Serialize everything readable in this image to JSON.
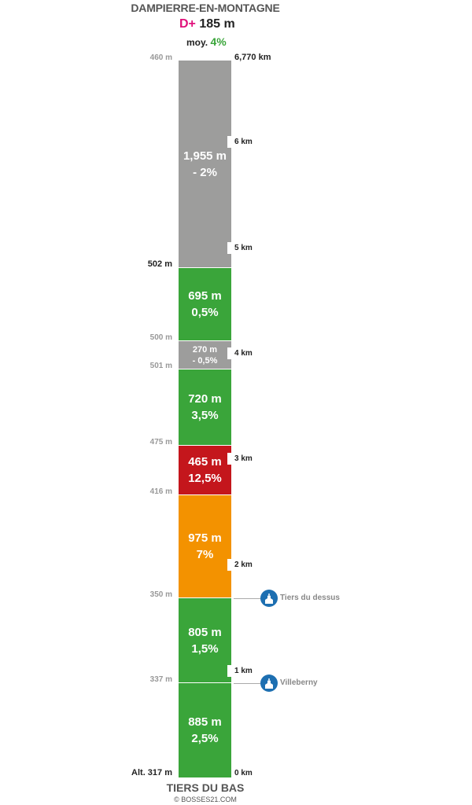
{
  "header": {
    "start_name": "DAMPIERRE-EN-MONTAGNE",
    "dplus_label": "D+",
    "dplus_value": "185 m",
    "avg_label": "moy.",
    "avg_value": "4%"
  },
  "footer": {
    "end_name": "TIERS DU BAS",
    "copyright": "© BOSSES21.COM"
  },
  "total_distance": "6,770 km",
  "segments": [
    {
      "length": "885 m",
      "grade": "2,5%",
      "color": "#3aa53a"
    },
    {
      "length": "805 m",
      "grade": "1,5%",
      "color": "#3aa53a"
    },
    {
      "length": "975 m",
      "grade": "7%",
      "color": "#f39200"
    },
    {
      "length": "465 m",
      "grade": "12,5%",
      "color": "#c4161c"
    },
    {
      "length": "720 m",
      "grade": "3,5%",
      "color": "#3aa53a"
    },
    {
      "length": "270 m",
      "grade": "- 0,5%",
      "color": "#9d9d9c"
    },
    {
      "length": "695 m",
      "grade": "0,5%",
      "color": "#3aa53a"
    },
    {
      "length": "1,955 m",
      "grade": "- 2%",
      "color": "#9d9d9c"
    }
  ],
  "altitudes": [
    "Alt. 317 m",
    "337 m",
    "350 m",
    "416 m",
    "475 m",
    "501 m",
    "500 m",
    "502 m",
    "460 m"
  ],
  "km_markers": [
    "0 km",
    "1 km",
    "2 km",
    "3 km",
    "4 km",
    "5 km",
    "6 km"
  ],
  "poi": [
    {
      "name": "Villeberny",
      "icon": "church-icon"
    },
    {
      "name": "Tiers du dessus",
      "icon": "church-icon"
    }
  ]
}
